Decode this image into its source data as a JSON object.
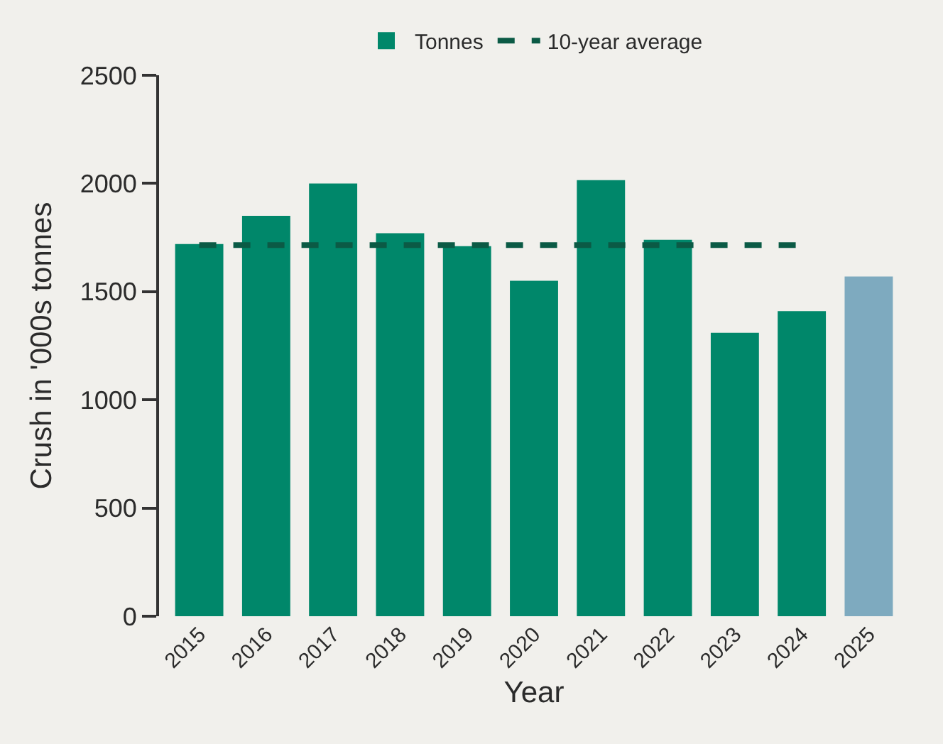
{
  "chart_data": {
    "type": "bar",
    "xlabel": "Year",
    "ylabel": "Crush in '000s tonnes",
    "categories": [
      "2015",
      "2016",
      "2017",
      "2018",
      "2019",
      "2020",
      "2021",
      "2022",
      "2023",
      "2024",
      "2025"
    ],
    "series": [
      {
        "name": "Tonnes",
        "color": "#00876a",
        "colors": [
          null,
          null,
          null,
          null,
          null,
          null,
          null,
          null,
          null,
          null,
          "#7eaabf"
        ],
        "values": [
          1720,
          1850,
          2000,
          1770,
          1710,
          1550,
          2015,
          1740,
          1310,
          1410,
          1570
        ]
      },
      {
        "name": "10-year average",
        "type": "line",
        "color": "#0b5a45",
        "line_style": "dashed",
        "marker": "none",
        "values": [
          1715,
          1715,
          1715,
          1715,
          1715,
          1715,
          1715,
          1715,
          1715,
          1715,
          null
        ]
      }
    ],
    "ylim": [
      0,
      2500
    ],
    "yticks": [
      0,
      500,
      1000,
      1500,
      2000,
      2500
    ],
    "grid": false,
    "legend": "top"
  }
}
